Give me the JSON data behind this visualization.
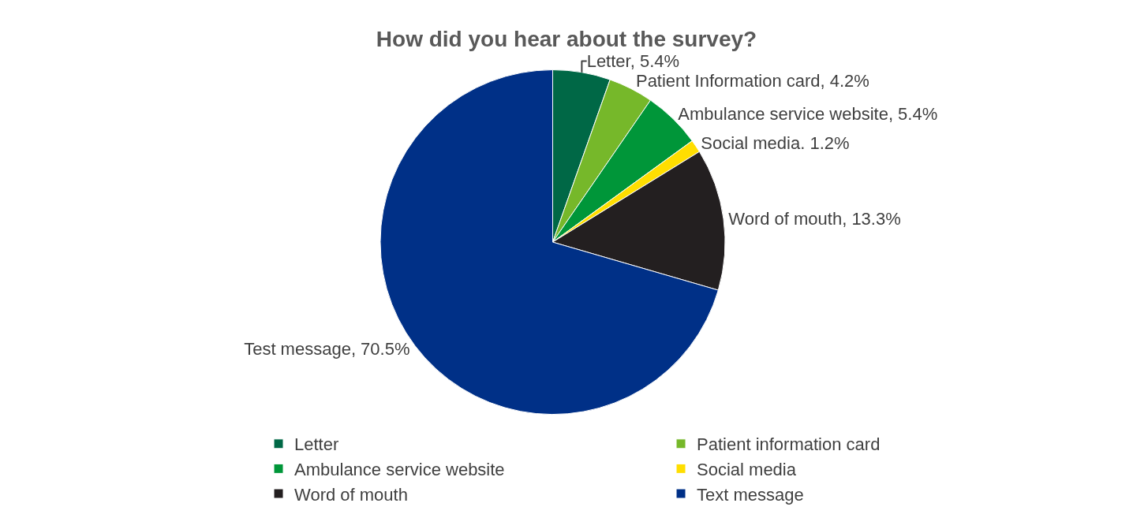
{
  "chart_data": {
    "type": "pie",
    "title": "How did you hear about the survey?",
    "categories": [
      "Letter",
      "Patient information card",
      "Ambulance service website",
      "Social media",
      "Word of mouth",
      "Text message"
    ],
    "values": [
      5.4,
      4.2,
      5.4,
      1.2,
      13.3,
      70.5
    ],
    "colors": [
      "#006846",
      "#76b82a",
      "#009639",
      "#ffde00",
      "#231f20",
      "#003087"
    ],
    "value_labels": [
      "Letter, 5.4%",
      "Patient Information card, 4.2%",
      "Ambulance service website, 5.4%",
      "Social media. 1.2%",
      "Word of mouth, 13.3%",
      "Test message, 70.5%"
    ],
    "legend": "bottom"
  }
}
